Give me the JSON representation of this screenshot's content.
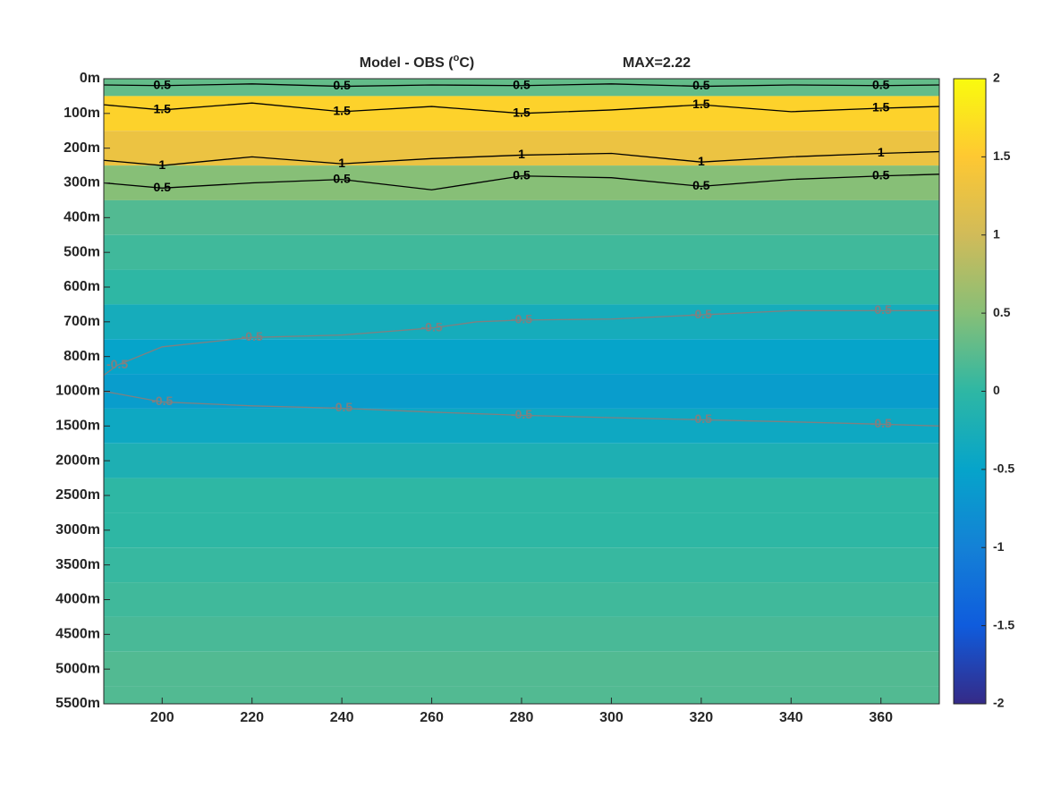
{
  "chart_data": {
    "type": "contour",
    "title_parts": [
      "Model - OBS (",
      "o",
      "C)"
    ],
    "annotation": "MAX=2.22",
    "xlim": [
      187,
      373
    ],
    "xticks": [
      200,
      220,
      240,
      260,
      280,
      300,
      320,
      340,
      360
    ],
    "yticks": [
      {
        "value": 0,
        "label": "0m"
      },
      {
        "value": 100,
        "label": "100m"
      },
      {
        "value": 200,
        "label": "200m"
      },
      {
        "value": 300,
        "label": "300m"
      },
      {
        "value": 400,
        "label": "400m"
      },
      {
        "value": 500,
        "label": "500m"
      },
      {
        "value": 600,
        "label": "600m"
      },
      {
        "value": 700,
        "label": "700m"
      },
      {
        "value": 800,
        "label": "800m"
      },
      {
        "value": 1000,
        "label": "1000m"
      },
      {
        "value": 1500,
        "label": "1500m"
      },
      {
        "value": 2000,
        "label": "2000m"
      },
      {
        "value": 2500,
        "label": "2500m"
      },
      {
        "value": 3000,
        "label": "3000m"
      },
      {
        "value": 3500,
        "label": "3500m"
      },
      {
        "value": 4000,
        "label": "4000m"
      },
      {
        "value": 4500,
        "label": "4500m"
      },
      {
        "value": 5000,
        "label": "5000m"
      },
      {
        "value": 5500,
        "label": "5500m"
      }
    ],
    "ylim": [
      0,
      5500
    ],
    "profile": {
      "depth": [
        0,
        100,
        200,
        300,
        400,
        500,
        600,
        700,
        800,
        1000,
        1500,
        2000,
        2500,
        3000,
        3500,
        4000,
        4500,
        5000,
        5500
      ],
      "values": [
        0.3,
        1.6,
        1.3,
        0.5,
        0.2,
        0.1,
        0,
        -0.3,
        -0.5,
        -0.6,
        -0.4,
        -0.2,
        0,
        0,
        0.05,
        0.1,
        0.15,
        0.2,
        0.2
      ]
    },
    "contours": [
      {
        "level": 0.5,
        "color": "#000000",
        "x": [
          187,
          200,
          220,
          240,
          260,
          280,
          300,
          320,
          340,
          360,
          373
        ],
        "depth": [
          18,
          20,
          15,
          22,
          18,
          20,
          15,
          22,
          18,
          20,
          18
        ]
      },
      {
        "level": 1.5,
        "color": "#000000",
        "x": [
          187,
          200,
          220,
          240,
          260,
          280,
          300,
          320,
          340,
          360,
          373
        ],
        "depth": [
          75,
          90,
          70,
          95,
          80,
          100,
          90,
          75,
          95,
          85,
          80
        ]
      },
      {
        "level": 1,
        "color": "#000000",
        "x": [
          187,
          200,
          220,
          240,
          260,
          280,
          300,
          320,
          340,
          360,
          373
        ],
        "depth": [
          235,
          250,
          225,
          245,
          230,
          220,
          215,
          240,
          225,
          215,
          210
        ]
      },
      {
        "level": 0.5,
        "color": "#000000",
        "x": [
          187,
          200,
          220,
          240,
          260,
          280,
          300,
          320,
          340,
          360,
          373
        ],
        "depth": [
          300,
          315,
          300,
          290,
          320,
          280,
          285,
          310,
          290,
          280,
          275
        ]
      },
      {
        "level": -0.5,
        "color": "#808080",
        "x": [
          187,
          190,
          200,
          220,
          240,
          260,
          270,
          280,
          300,
          320,
          340,
          360,
          373
        ],
        "depth": [
          908,
          850,
          772,
          745,
          738,
          718,
          700,
          695,
          692,
          680,
          668,
          668,
          668
        ]
      },
      {
        "level": -0.5,
        "color": "#808080",
        "x": [
          187,
          200,
          220,
          240,
          260,
          280,
          300,
          320,
          340,
          360,
          373
        ],
        "depth": [
          1000,
          1154,
          1210,
          1245,
          1300,
          1346,
          1380,
          1410,
          1440,
          1474,
          1500
        ]
      }
    ],
    "clim": [
      -2,
      2
    ],
    "cticks": [
      -2,
      -1.5,
      -1,
      -0.5,
      0,
      0.5,
      1,
      1.5,
      2
    ],
    "colormap": [
      "#352a87",
      "#0f5cdd",
      "#1481d6",
      "#06a4ca",
      "#2eb7a4",
      "#87bf77",
      "#d1bb59",
      "#fec832",
      "#f9fb0e"
    ]
  }
}
